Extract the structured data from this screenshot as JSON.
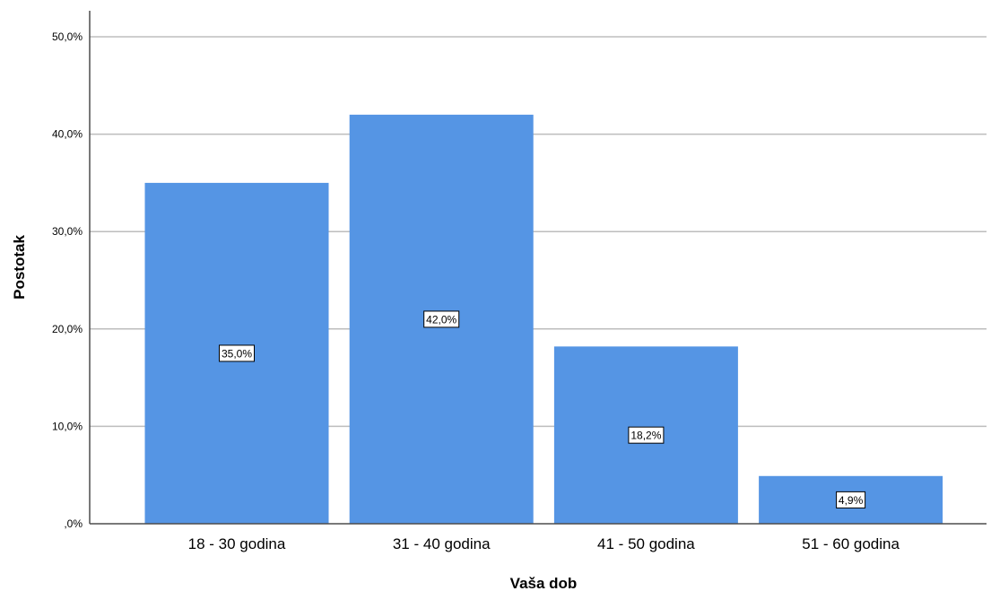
{
  "chart_data": {
    "type": "bar",
    "categories": [
      "18 - 30 godina",
      "31 - 40 godina",
      "41 - 50 godina",
      "51 - 60 godina"
    ],
    "values": [
      35.0,
      42.0,
      18.2,
      4.9
    ],
    "data_labels": [
      "35,0%",
      "42,0%",
      "18,2%",
      "4,9%"
    ],
    "title": "",
    "xlabel": "Vaša dob",
    "ylabel": "Postotak",
    "ylim": [
      0,
      50
    ],
    "yticks": [
      0,
      10,
      20,
      30,
      40,
      50
    ],
    "ytick_labels": [
      ",0%",
      "10,0%",
      "20,0%",
      "30,0%",
      "40,0%",
      "50,0%"
    ],
    "grid": true,
    "legend": "none",
    "colors": {
      "bar": "#5595e4",
      "grid": "#bdbdbd",
      "axis": "#4d4d4d"
    }
  }
}
